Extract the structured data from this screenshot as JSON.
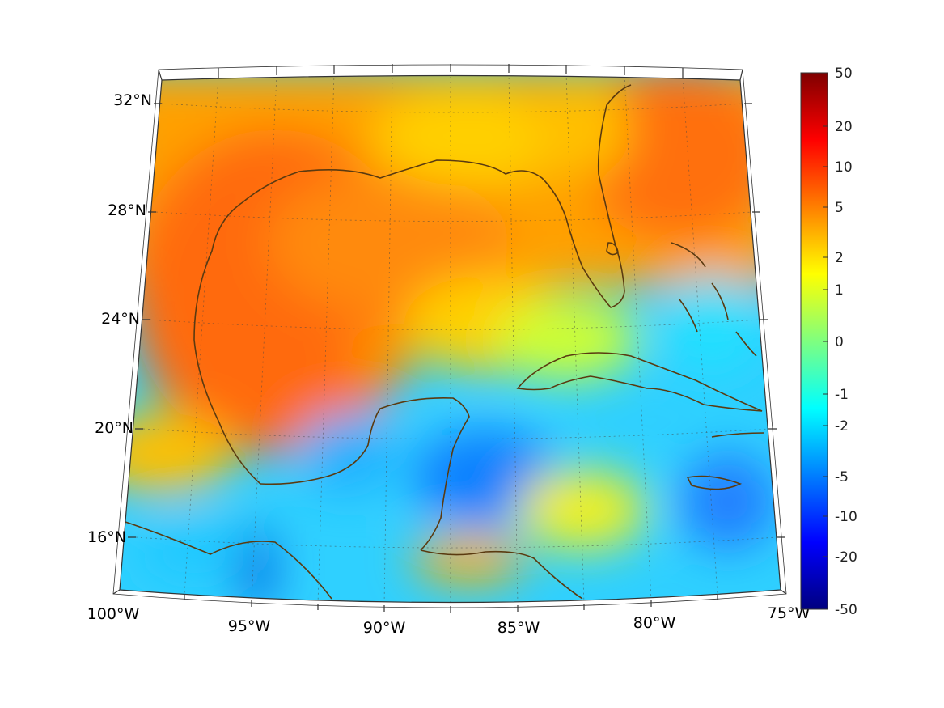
{
  "map": {
    "lon_labels": [
      "100°W",
      "95°W",
      "90°W",
      "85°W",
      "80°W",
      "75°W"
    ],
    "lat_labels": [
      "16°N",
      "20°N",
      "24°N",
      "28°N",
      "32°N"
    ],
    "extent": {
      "lon": [
        -100,
        -75
      ],
      "lat": [
        14,
        33
      ]
    },
    "coastline_color": "#5a3a10",
    "graticule": "dotted"
  },
  "colorbar": {
    "tick_labels": [
      "50",
      "20",
      "10",
      "5",
      "2",
      "1",
      "0",
      "-1",
      "-2",
      "-5",
      "-10",
      "-20",
      "-50"
    ],
    "colormap": "jet",
    "range": [
      -50,
      50
    ]
  }
}
